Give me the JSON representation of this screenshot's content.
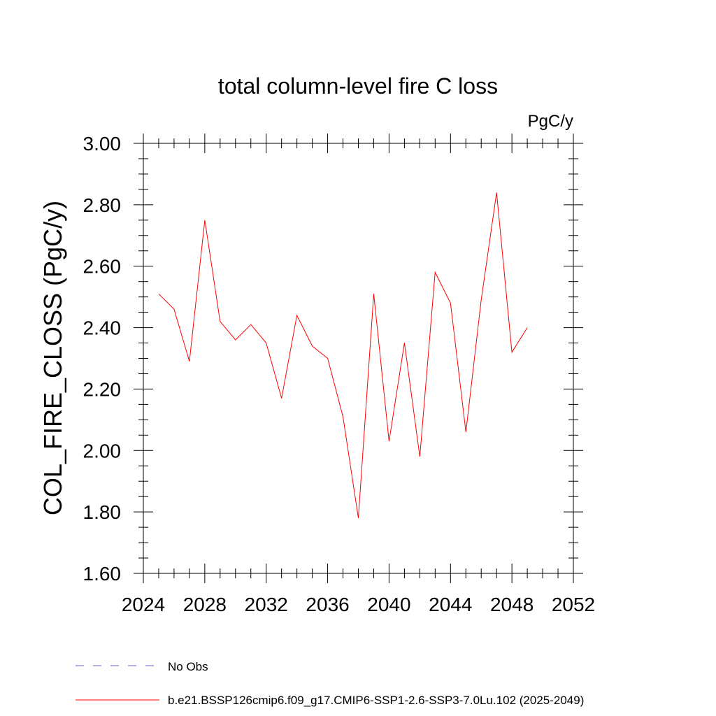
{
  "chart_data": {
    "type": "line",
    "title": "total column-level fire C loss",
    "units_label": "PgC/y",
    "ylabel": "COL_FIRE_CLOSS  (PgC/y)",
    "xlabel": "",
    "xlim": [
      2024,
      2052
    ],
    "ylim": [
      1.6,
      3.0
    ],
    "x_major_ticks": [
      2024,
      2028,
      2032,
      2036,
      2040,
      2044,
      2048,
      2052
    ],
    "x_tick_labels": [
      "2024",
      "2028",
      "2032",
      "2036",
      "2040",
      "2044",
      "2048",
      "2052"
    ],
    "y_major_ticks": [
      1.6,
      1.8,
      2.0,
      2.2,
      2.4,
      2.6,
      2.8,
      3.0
    ],
    "y_tick_labels": [
      "1.60",
      "1.80",
      "2.00",
      "2.20",
      "2.40",
      "2.60",
      "2.80",
      "3.00"
    ],
    "grid": false,
    "legend_position": "bottom-left",
    "series": [
      {
        "name": "b.e21.BSSP126cmip6.f09_g17.CMIP6-SSP1-2.6-SSP3-7.0Lu.102 (2025-2049)",
        "color": "#ff0000",
        "style": "solid",
        "x": [
          2025,
          2026,
          2027,
          2028,
          2029,
          2030,
          2031,
          2032,
          2033,
          2034,
          2035,
          2036,
          2037,
          2038,
          2039,
          2040,
          2041,
          2042,
          2043,
          2044,
          2045,
          2046,
          2047,
          2048,
          2049
        ],
        "y": [
          2.51,
          2.46,
          2.29,
          2.75,
          2.42,
          2.36,
          2.41,
          2.35,
          2.17,
          2.44,
          2.34,
          2.3,
          2.11,
          1.78,
          2.51,
          2.03,
          2.35,
          1.98,
          2.58,
          2.48,
          2.06,
          2.49,
          2.84,
          2.32,
          2.4
        ]
      }
    ],
    "legend": [
      {
        "label": "No Obs",
        "color": "#6a5acd",
        "style": "dashed"
      },
      {
        "label": "b.e21.BSSP126cmip6.f09_g17.CMIP6-SSP1-2.6-SSP3-7.0Lu.102 (2025-2049)",
        "color": "#ff0000",
        "style": "solid"
      }
    ]
  }
}
